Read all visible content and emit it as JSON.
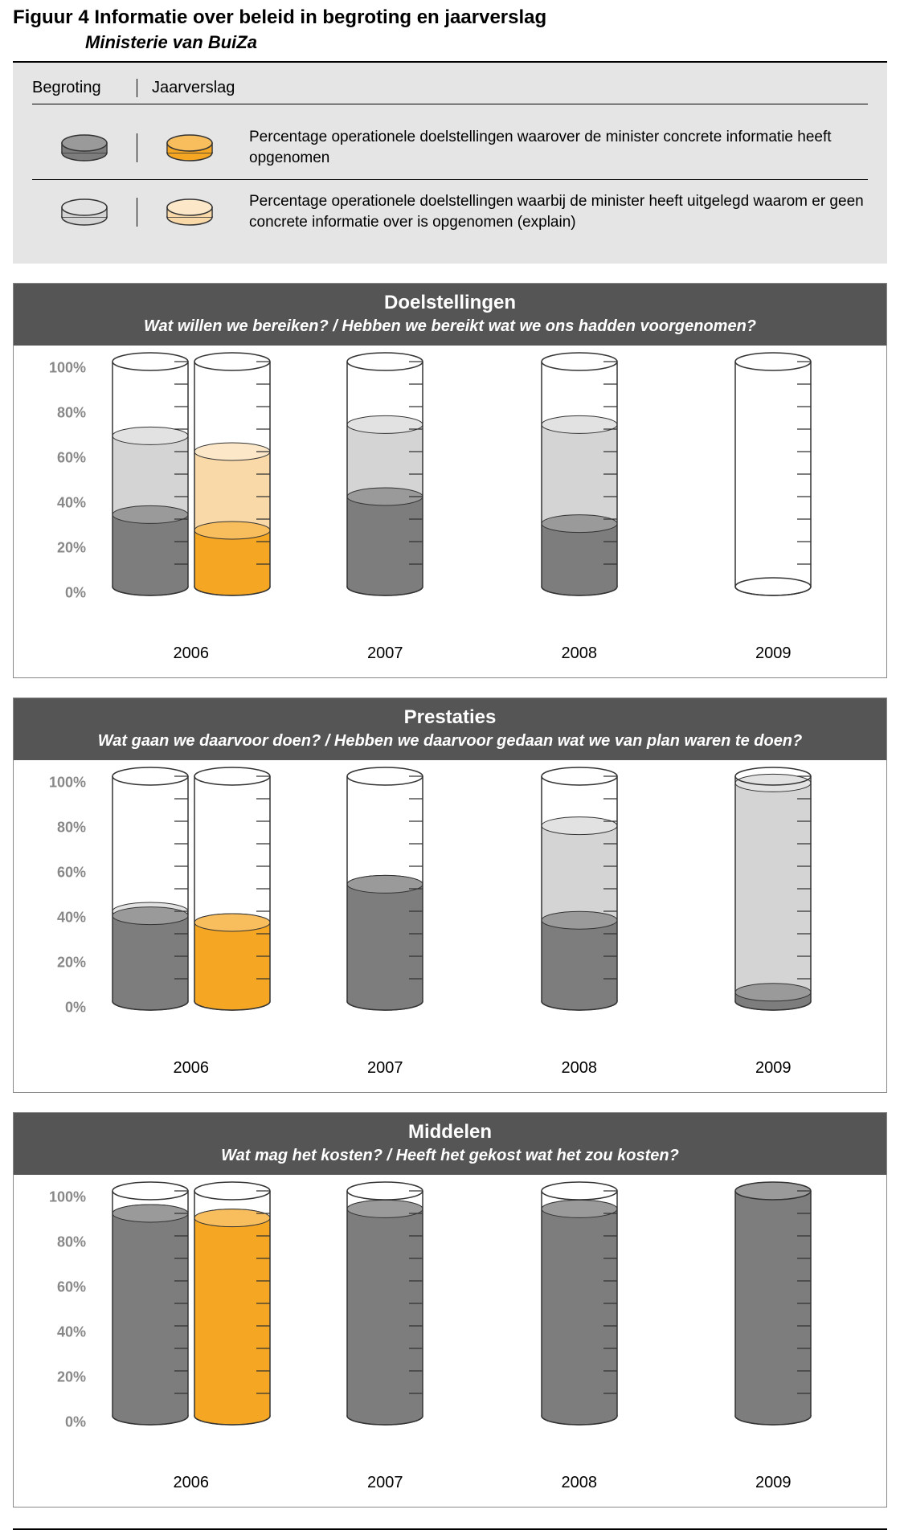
{
  "title": "Figuur 4  Informatie over beleid in begroting en jaarverslag",
  "subtitle": "Ministerie van BuiZa",
  "legend": {
    "header_col1": "Begroting",
    "header_col2": "Jaarverslag",
    "row1_text": "Percentage operationele doelstellingen waarover de minister concrete informatie heeft opgenomen",
    "row2_text": "Percentage operationele doelstellingen waarbij de minister heeft uitgelegd waarom er geen concrete informatie over is opgenomen (explain)"
  },
  "colors": {
    "grey_dark": "#7d7d7d",
    "grey_dark_top": "#9a9a9a",
    "grey_light": "#d4d4d4",
    "grey_light_top": "#e2e2e2",
    "orange_dark": "#f5a623",
    "orange_dark_top": "#f8bd5c",
    "orange_light": "#fad9a8",
    "orange_light_top": "#fce8c9",
    "outline": "#333333",
    "tick_mark": "#333333",
    "panel_header_bg": "#555555",
    "legend_bg": "#e5e5e5",
    "axis_text": "#888888"
  },
  "cylinder_geom": {
    "width": 96,
    "height_units": 280,
    "ellipse_ry": 11,
    "tick_count": 10
  },
  "y_ticks": [
    "0%",
    "20%",
    "40%",
    "60%",
    "80%",
    "100%"
  ],
  "years": [
    "2006",
    "2007",
    "2008",
    "2009"
  ],
  "panels": [
    {
      "title": "Doelstellingen",
      "subtitle": "Wat willen we bereiken? / Hebben we bereikt wat we ons hadden voorgenomen?",
      "bars": [
        {
          "year": "2006",
          "cyls": [
            {
              "type": "begroting",
              "dark": 32,
              "light": 67
            },
            {
              "type": "jaarverslag",
              "dark": 25,
              "light": 60
            }
          ]
        },
        {
          "year": "2007",
          "cyls": [
            {
              "type": "begroting",
              "dark": 40,
              "light": 72
            }
          ]
        },
        {
          "year": "2008",
          "cyls": [
            {
              "type": "begroting",
              "dark": 28,
              "light": 72
            }
          ]
        },
        {
          "year": "2009",
          "cyls": [
            {
              "type": "begroting",
              "dark": 0,
              "light": 0
            }
          ]
        }
      ]
    },
    {
      "title": "Prestaties",
      "subtitle": "Wat gaan we daarvoor doen? / Hebben we daarvoor gedaan wat we van plan waren te doen?",
      "bars": [
        {
          "year": "2006",
          "cyls": [
            {
              "type": "begroting",
              "dark": 38,
              "light": 40
            },
            {
              "type": "jaarverslag",
              "dark": 35,
              "light": 35
            }
          ]
        },
        {
          "year": "2007",
          "cyls": [
            {
              "type": "begroting",
              "dark": 52,
              "light": 52
            }
          ]
        },
        {
          "year": "2008",
          "cyls": [
            {
              "type": "begroting",
              "dark": 36,
              "light": 78
            }
          ]
        },
        {
          "year": "2009",
          "cyls": [
            {
              "type": "begroting",
              "dark": 4,
              "light": 97
            }
          ]
        }
      ]
    },
    {
      "title": "Middelen",
      "subtitle": "Wat mag het kosten? / Heeft het gekost wat het zou kosten?",
      "bars": [
        {
          "year": "2006",
          "cyls": [
            {
              "type": "begroting",
              "dark": 90,
              "light": 90
            },
            {
              "type": "jaarverslag",
              "dark": 88,
              "light": 88
            }
          ]
        },
        {
          "year": "2007",
          "cyls": [
            {
              "type": "begroting",
              "dark": 92,
              "light": 92
            }
          ]
        },
        {
          "year": "2008",
          "cyls": [
            {
              "type": "begroting",
              "dark": 92,
              "light": 92
            }
          ]
        },
        {
          "year": "2009",
          "cyls": [
            {
              "type": "begroting",
              "dark": 100,
              "light": 100
            }
          ]
        }
      ]
    }
  ]
}
